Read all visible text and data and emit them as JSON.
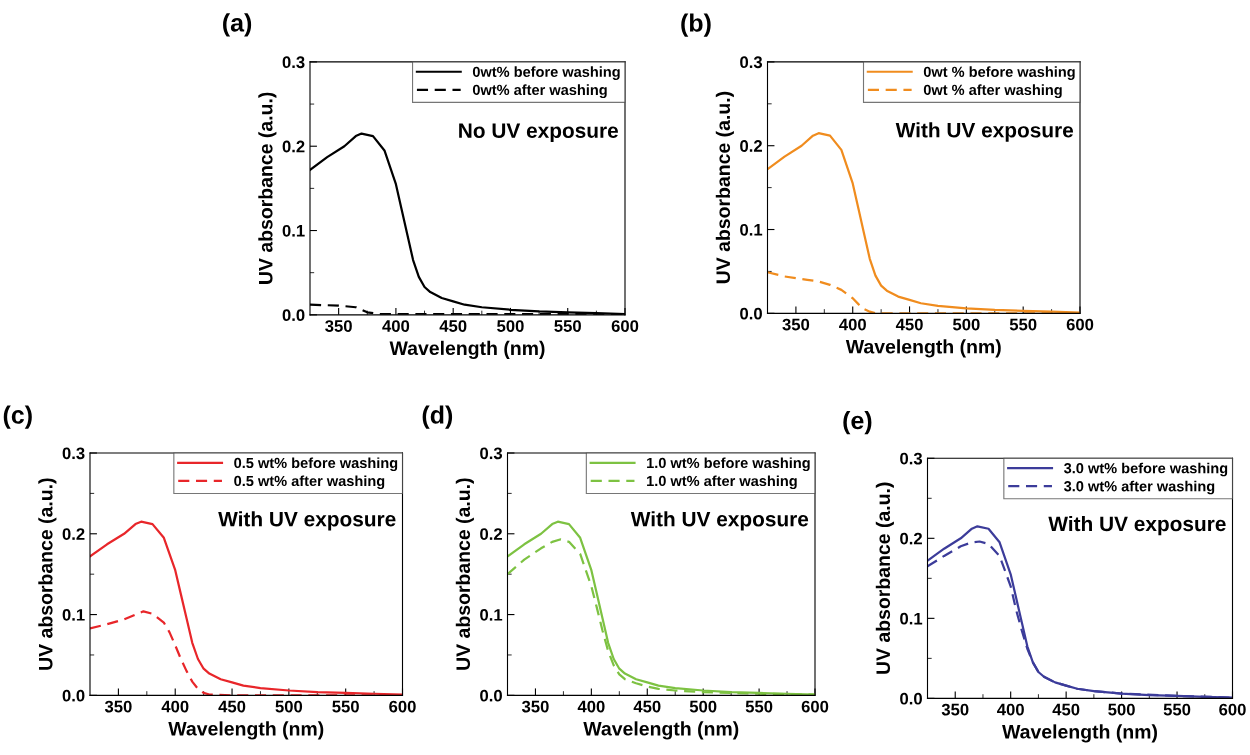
{
  "chart_data": [
    {
      "type": "line",
      "title": "(a)",
      "xlabel": "Wavelength (nm)",
      "ylabel": "UV absorbance (a.u.)",
      "annotations": [
        "No UV exposure"
      ],
      "xlim": [
        325,
        600
      ],
      "ylim": [
        0,
        0.3
      ],
      "xticks": [
        350,
        400,
        450,
        500,
        550,
        600,
        {
          "value": 375,
          "label": null
        },
        {
          "value": 425,
          "label": null
        },
        {
          "value": 475,
          "label": null
        },
        {
          "value": 525,
          "label": null
        },
        {
          "value": 575,
          "label": null
        }
      ],
      "yticks": [
        {
          "value": 0,
          "label": "0.0"
        },
        {
          "value": 0.1,
          "label": "0.1"
        },
        {
          "value": 0.2,
          "label": "0.2"
        },
        {
          "value": 0.3,
          "label": "0.3"
        },
        {
          "value": 0.05,
          "label": null
        },
        {
          "value": 0.15,
          "label": null
        },
        {
          "value": 0.25,
          "label": null
        }
      ],
      "legend": "top right",
      "grid": false,
      "marker": "none",
      "series": [
        {
          "name": "0wt% before washing",
          "color": "#000000",
          "line_style": "solid",
          "x": [
            325,
            340,
            355,
            365,
            370,
            380,
            390,
            400,
            405,
            410,
            415,
            420,
            425,
            430,
            440,
            450,
            460,
            475,
            500,
            525,
            550,
            575,
            600
          ],
          "values": [
            0.172,
            0.187,
            0.2,
            0.212,
            0.215,
            0.212,
            0.195,
            0.155,
            0.125,
            0.095,
            0.065,
            0.045,
            0.033,
            0.027,
            0.02,
            0.016,
            0.012,
            0.009,
            0.006,
            0.004,
            0.003,
            0.002,
            0.001
          ]
        },
        {
          "name": "0wt% after washing",
          "color": "#000000",
          "line_style": "dashed",
          "x": [
            325,
            350,
            365,
            375,
            385,
            400,
            450,
            500,
            550,
            600
          ],
          "values": [
            0.012,
            0.011,
            0.009,
            0.003,
            0.001,
            0.001,
            0.001,
            0.001,
            0.001,
            0.001
          ]
        }
      ]
    },
    {
      "type": "line",
      "title": "(b)",
      "xlabel": "Wavelength (nm)",
      "ylabel": "UV absorbance (a.u.)",
      "annotations": [
        "With UV exposure"
      ],
      "xlim": [
        325,
        600
      ],
      "ylim": [
        0,
        0.3
      ],
      "xticks": [
        350,
        400,
        450,
        500,
        550,
        600,
        {
          "value": 375,
          "label": null
        },
        {
          "value": 425,
          "label": null
        },
        {
          "value": 475,
          "label": null
        },
        {
          "value": 525,
          "label": null
        },
        {
          "value": 575,
          "label": null
        }
      ],
      "yticks": [
        {
          "value": 0,
          "label": "0.0"
        },
        {
          "value": 0.1,
          "label": "0.1"
        },
        {
          "value": 0.2,
          "label": "0.2"
        },
        {
          "value": 0.3,
          "label": "0.3"
        },
        {
          "value": 0.05,
          "label": null
        },
        {
          "value": 0.15,
          "label": null
        },
        {
          "value": 0.25,
          "label": null
        }
      ],
      "legend": "top right",
      "grid": false,
      "marker": "none",
      "series": [
        {
          "name": "0wt % before washing",
          "color": "#f08c1e",
          "line_style": "solid",
          "x": [
            325,
            340,
            355,
            365,
            370,
            380,
            390,
            400,
            405,
            410,
            415,
            420,
            425,
            430,
            440,
            450,
            460,
            475,
            500,
            525,
            550,
            575,
            600
          ],
          "values": [
            0.172,
            0.187,
            0.2,
            0.212,
            0.215,
            0.212,
            0.195,
            0.155,
            0.125,
            0.095,
            0.065,
            0.045,
            0.033,
            0.027,
            0.02,
            0.016,
            0.012,
            0.009,
            0.006,
            0.004,
            0.003,
            0.002,
            0.001
          ]
        },
        {
          "name": "0wt % after washing",
          "color": "#f08c1e",
          "line_style": "dashed",
          "x": [
            325,
            340,
            360,
            370,
            380,
            390,
            400,
            405,
            410,
            415,
            420,
            450,
            500,
            600
          ],
          "values": [
            0.049,
            0.044,
            0.04,
            0.038,
            0.034,
            0.028,
            0.018,
            0.011,
            0.005,
            0.002,
            0.0,
            0.0,
            0.0,
            0.0
          ]
        }
      ]
    },
    {
      "type": "line",
      "title": "(c)",
      "xlabel": "Wavelength (nm)",
      "ylabel": "UV absorbance (a.u.)",
      "annotations": [
        "With UV exposure"
      ],
      "xlim": [
        325,
        600
      ],
      "ylim": [
        0,
        0.3
      ],
      "xticks": [
        350,
        400,
        450,
        500,
        550,
        600,
        {
          "value": 375,
          "label": null
        },
        {
          "value": 425,
          "label": null
        },
        {
          "value": 475,
          "label": null
        },
        {
          "value": 525,
          "label": null
        },
        {
          "value": 575,
          "label": null
        }
      ],
      "yticks": [
        {
          "value": 0,
          "label": "0.0"
        },
        {
          "value": 0.1,
          "label": "0.1"
        },
        {
          "value": 0.2,
          "label": "0.2"
        },
        {
          "value": 0.3,
          "label": "0.3"
        },
        {
          "value": 0.05,
          "label": null
        },
        {
          "value": 0.15,
          "label": null
        },
        {
          "value": 0.25,
          "label": null
        }
      ],
      "legend": "top right",
      "grid": false,
      "marker": "none",
      "series": [
        {
          "name": "0.5 wt% before washing",
          "color": "#e8262a",
          "line_style": "solid",
          "x": [
            325,
            340,
            355,
            365,
            370,
            380,
            390,
            400,
            405,
            410,
            415,
            420,
            425,
            430,
            440,
            450,
            460,
            475,
            500,
            525,
            550,
            575,
            600
          ],
          "values": [
            0.172,
            0.187,
            0.2,
            0.212,
            0.215,
            0.212,
            0.195,
            0.155,
            0.125,
            0.095,
            0.065,
            0.045,
            0.033,
            0.027,
            0.02,
            0.016,
            0.012,
            0.009,
            0.006,
            0.004,
            0.003,
            0.002,
            0.001
          ]
        },
        {
          "name": "0.5 wt% after washing",
          "color": "#e8262a",
          "line_style": "dashed",
          "x": [
            325,
            340,
            355,
            365,
            372,
            380,
            390,
            395,
            400,
            405,
            410,
            415,
            420,
            425,
            430,
            450,
            500,
            600
          ],
          "values": [
            0.083,
            0.088,
            0.094,
            0.1,
            0.104,
            0.101,
            0.09,
            0.078,
            0.062,
            0.045,
            0.03,
            0.017,
            0.008,
            0.003,
            0.001,
            0.0,
            0.0,
            0.0
          ]
        }
      ]
    },
    {
      "type": "line",
      "title": "(d)",
      "xlabel": "Wavelength (nm)",
      "ylabel": "UV absorbance (a.u.)",
      "annotations": [
        "With UV exposure"
      ],
      "xlim": [
        325,
        600
      ],
      "ylim": [
        0,
        0.3
      ],
      "xticks": [
        350,
        400,
        450,
        500,
        550,
        600,
        {
          "value": 375,
          "label": null
        },
        {
          "value": 425,
          "label": null
        },
        {
          "value": 475,
          "label": null
        },
        {
          "value": 525,
          "label": null
        },
        {
          "value": 575,
          "label": null
        }
      ],
      "yticks": [
        {
          "value": 0,
          "label": "0.0"
        },
        {
          "value": 0.1,
          "label": "0.1"
        },
        {
          "value": 0.2,
          "label": "0.2"
        },
        {
          "value": 0.3,
          "label": "0.3"
        },
        {
          "value": 0.05,
          "label": null
        },
        {
          "value": 0.15,
          "label": null
        },
        {
          "value": 0.25,
          "label": null
        }
      ],
      "legend": "top right",
      "grid": false,
      "marker": "none",
      "series": [
        {
          "name": "1.0 wt% before washing",
          "color": "#7dc242",
          "line_style": "solid",
          "x": [
            325,
            340,
            355,
            365,
            370,
            380,
            390,
            400,
            405,
            410,
            415,
            420,
            425,
            430,
            440,
            450,
            460,
            475,
            500,
            525,
            550,
            575,
            600
          ],
          "values": [
            0.172,
            0.187,
            0.2,
            0.212,
            0.215,
            0.212,
            0.195,
            0.155,
            0.125,
            0.095,
            0.065,
            0.045,
            0.033,
            0.027,
            0.02,
            0.016,
            0.012,
            0.009,
            0.006,
            0.004,
            0.003,
            0.002,
            0.001
          ]
        },
        {
          "name": "1.0 wt% after washing",
          "color": "#7dc242",
          "line_style": "dashed",
          "x": [
            325,
            340,
            355,
            365,
            372,
            380,
            390,
            400,
            405,
            410,
            415,
            420,
            425,
            430,
            440,
            450,
            460,
            475,
            500,
            550,
            600
          ],
          "values": [
            0.15,
            0.168,
            0.182,
            0.19,
            0.193,
            0.19,
            0.175,
            0.135,
            0.108,
            0.08,
            0.055,
            0.037,
            0.026,
            0.02,
            0.015,
            0.011,
            0.008,
            0.006,
            0.004,
            0.002,
            0.001
          ]
        }
      ]
    },
    {
      "type": "line",
      "title": "(e)",
      "xlabel": "Wavelength (nm)",
      "ylabel": "UV absorbance (a.u.)",
      "annotations": [
        "With UV exposure"
      ],
      "xlim": [
        325,
        600
      ],
      "ylim": [
        0,
        0.3
      ],
      "xticks": [
        350,
        400,
        450,
        500,
        550,
        600,
        {
          "value": 375,
          "label": null
        },
        {
          "value": 425,
          "label": null
        },
        {
          "value": 475,
          "label": null
        },
        {
          "value": 525,
          "label": null
        },
        {
          "value": 575,
          "label": null
        }
      ],
      "yticks": [
        {
          "value": 0,
          "label": "0.0"
        },
        {
          "value": 0.1,
          "label": "0.1"
        },
        {
          "value": 0.2,
          "label": "0.2"
        },
        {
          "value": 0.3,
          "label": "0.3"
        },
        {
          "value": 0.05,
          "label": null
        },
        {
          "value": 0.15,
          "label": null
        },
        {
          "value": 0.25,
          "label": null
        }
      ],
      "legend": "top right",
      "grid": false,
      "marker": "none",
      "series": [
        {
          "name": "3.0 wt% before washing",
          "color": "#3c3c9a",
          "line_style": "solid",
          "x": [
            325,
            340,
            355,
            365,
            370,
            380,
            390,
            400,
            405,
            410,
            415,
            420,
            425,
            430,
            440,
            450,
            460,
            475,
            500,
            525,
            550,
            575,
            600
          ],
          "values": [
            0.172,
            0.187,
            0.2,
            0.212,
            0.215,
            0.212,
            0.195,
            0.155,
            0.125,
            0.095,
            0.065,
            0.045,
            0.033,
            0.027,
            0.02,
            0.016,
            0.012,
            0.009,
            0.006,
            0.004,
            0.003,
            0.002,
            0.001
          ]
        },
        {
          "name": "3.0 wt% after washing",
          "color": "#3c3c9a",
          "line_style": "dashed",
          "x": [
            325,
            340,
            355,
            365,
            372,
            380,
            390,
            400,
            405,
            410,
            415,
            420,
            425,
            430,
            440,
            450,
            460,
            475,
            500,
            550,
            600
          ],
          "values": [
            0.165,
            0.178,
            0.19,
            0.195,
            0.196,
            0.193,
            0.178,
            0.14,
            0.11,
            0.085,
            0.062,
            0.045,
            0.033,
            0.027,
            0.02,
            0.016,
            0.012,
            0.009,
            0.006,
            0.003,
            0.001
          ]
        }
      ]
    }
  ]
}
